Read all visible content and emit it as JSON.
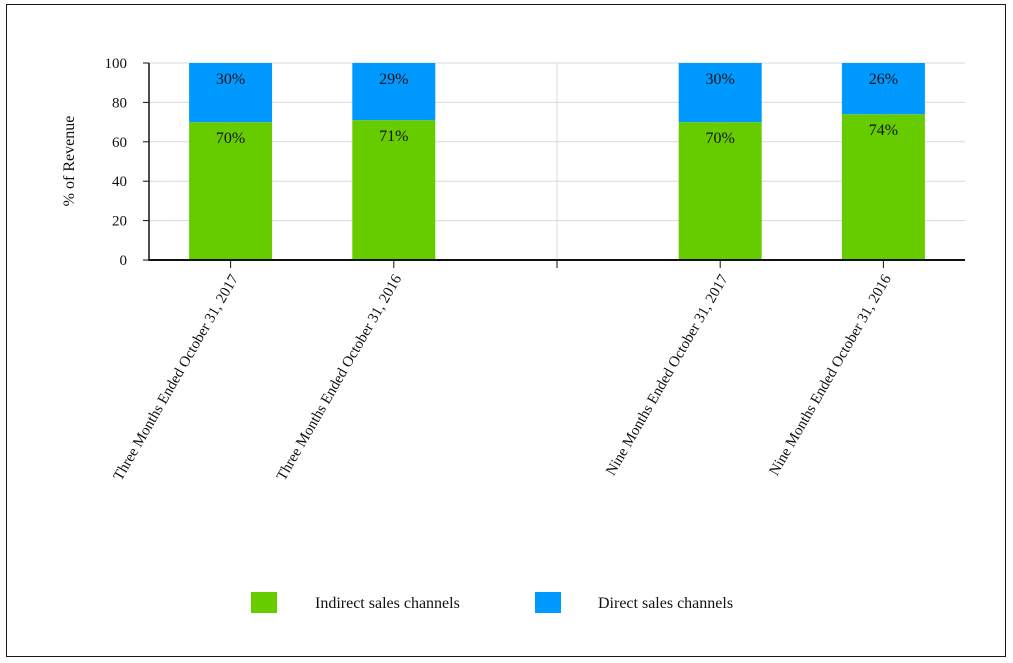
{
  "chart_data": {
    "type": "bar",
    "stacked": true,
    "categories": [
      "Three Months Ended October 31, 2017",
      "Three Months Ended October 31, 2016",
      "",
      "Nine Months Ended October 31, 2017",
      "Nine Months Ended October 31, 2016"
    ],
    "series": [
      {
        "name": "Indirect sales channels",
        "color": "#66cc00",
        "values": [
          70,
          71,
          null,
          70,
          74
        ],
        "labels": [
          "70%",
          "71%",
          "",
          "70%",
          "74%"
        ]
      },
      {
        "name": "Direct sales channels",
        "color": "#0099ff",
        "values": [
          30,
          29,
          null,
          30,
          26
        ],
        "labels": [
          "30%",
          "29%",
          "",
          "30%",
          "26%"
        ]
      }
    ],
    "ylabel": "% of Revenue",
    "xlabel": "",
    "title": "",
    "ylim": [
      0,
      100
    ],
    "yticks": [
      "0",
      "20",
      "40",
      "60",
      "80",
      "100"
    ],
    "grid": true,
    "legend_position": "bottom"
  }
}
